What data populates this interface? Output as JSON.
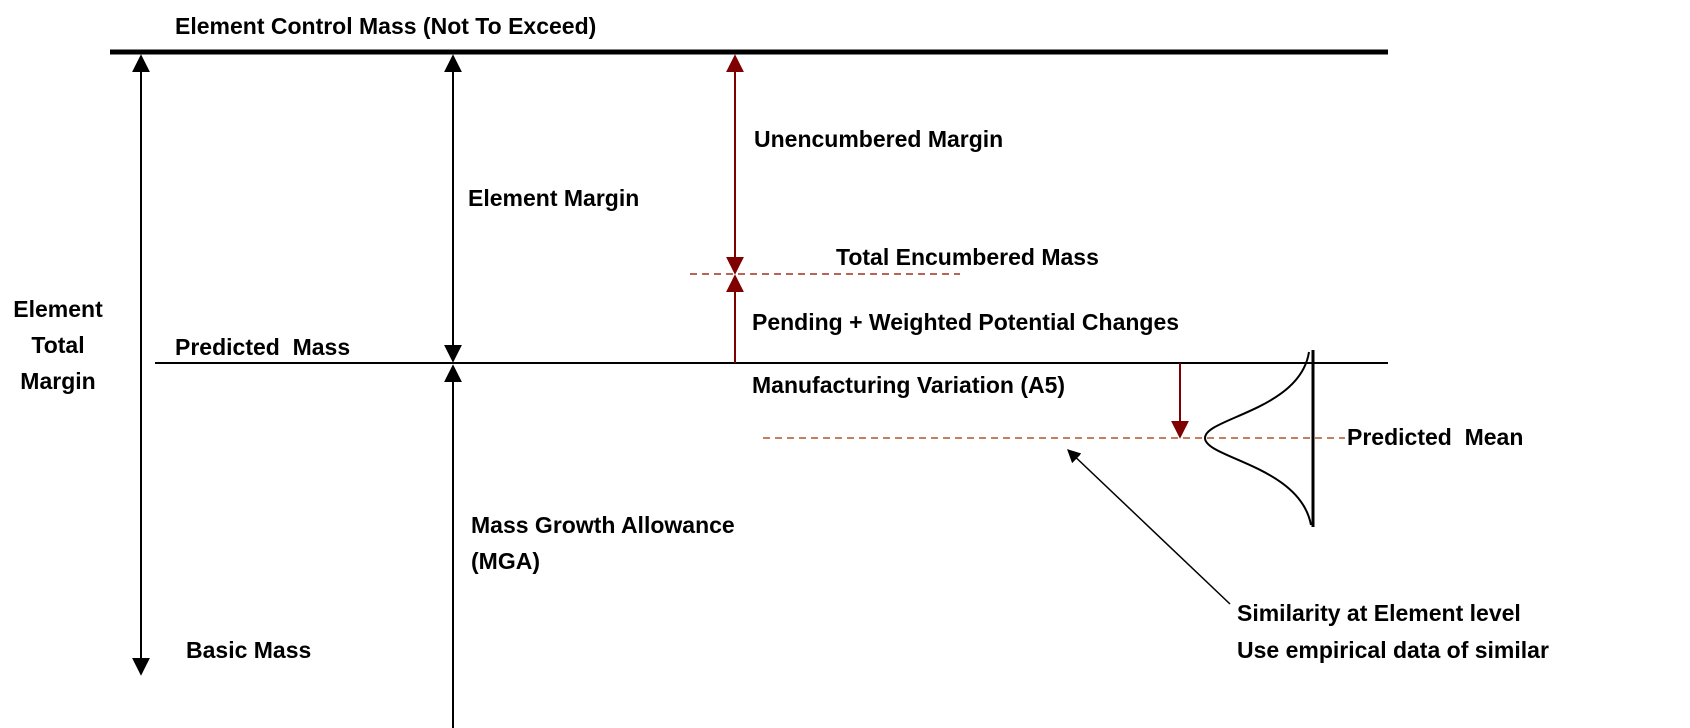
{
  "labels": {
    "control_mass": "Element Control Mass (Not To Exceed)",
    "element_margin": "Element Margin",
    "unencumbered_margin": "Unencumbered Margin",
    "total_encumbered_mass": "Total Encumbered Mass",
    "element_total_margin": [
      "Element",
      "Total",
      "Margin"
    ],
    "pending_changes": "Pending + Weighted Potential Changes",
    "predicted_mass": "Predicted  Mass",
    "manufacturing_variation": "Manufacturing Variation (A5)",
    "predicted_mean": "Predicted  Mean",
    "mga": [
      "Mass Growth Allowance",
      "(MGA)"
    ],
    "similarity": [
      "Similarity at Element level",
      "Use empirical data of similar"
    ],
    "basic_mass": "Basic Mass"
  }
}
